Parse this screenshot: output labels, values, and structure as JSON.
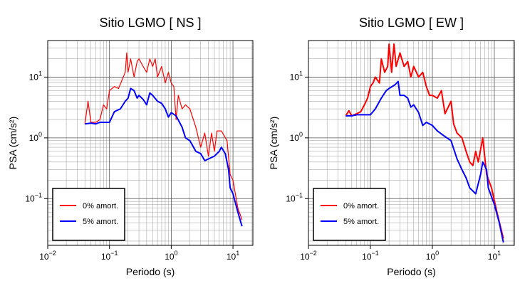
{
  "chart_data": [
    {
      "type": "line",
      "title": "Sitio LGMO [ NS ]",
      "xlabel": "Periodo (s)",
      "ylabel": "PSA (cm/s²)",
      "log_x": true,
      "log_y": true,
      "grid": true,
      "legend": "lower left",
      "xlim": [
        0.01,
        21
      ],
      "ylim": [
        0.017,
        40
      ],
      "xticks": [
        {
          "value": 0.01,
          "label": "10",
          "exponent": "−2"
        },
        {
          "value": 0.1,
          "label": "10",
          "exponent": "−1"
        },
        {
          "value": 1,
          "label": "10",
          "exponent": "0"
        },
        {
          "value": 10,
          "label": "10",
          "exponent": "1"
        }
      ],
      "yticks": [
        {
          "value": 0.1,
          "label": "10",
          "exponent": "−1"
        },
        {
          "value": 1,
          "label": "10",
          "exponent": "0"
        },
        {
          "value": 10,
          "label": "10",
          "exponent": "1"
        }
      ],
      "series": [
        {
          "name": "0% amort.",
          "color": "#ff0000",
          "width": 1.2,
          "x": [
            0.04,
            0.045,
            0.05,
            0.06,
            0.07,
            0.08,
            0.09,
            0.1,
            0.12,
            0.14,
            0.16,
            0.18,
            0.19,
            0.2,
            0.22,
            0.25,
            0.28,
            0.3,
            0.35,
            0.4,
            0.45,
            0.5,
            0.55,
            0.6,
            0.7,
            0.8,
            0.9,
            1.0,
            1.1,
            1.2,
            1.3,
            1.5,
            1.7,
            2.0,
            2.5,
            3.0,
            3.5,
            4.0,
            4.5,
            5.0,
            5.5,
            6.5,
            8,
            9,
            10,
            12,
            14
          ],
          "values": [
            1.7,
            4.0,
            1.8,
            1.8,
            2.0,
            3.5,
            3.0,
            6,
            7,
            6.5,
            9,
            12,
            25,
            12,
            20,
            10,
            18,
            20,
            15,
            12,
            20,
            15,
            20,
            10,
            15,
            8,
            12,
            8,
            7,
            2.0,
            5,
            3,
            3.5,
            3,
            1.5,
            0.7,
            1.2,
            0.5,
            1.2,
            0.6,
            1.3,
            1.3,
            0.9,
            0.25,
            0.2,
            0.07,
            0.045
          ]
        },
        {
          "name": "5% amort.",
          "color": "#0000ff",
          "width": 2,
          "x": [
            0.04,
            0.05,
            0.06,
            0.07,
            0.08,
            0.1,
            0.12,
            0.15,
            0.18,
            0.2,
            0.22,
            0.25,
            0.28,
            0.3,
            0.35,
            0.4,
            0.45,
            0.5,
            0.6,
            0.7,
            0.8,
            0.9,
            1.0,
            1.2,
            1.5,
            1.7,
            2.0,
            2.5,
            3.0,
            3.5,
            4,
            5,
            6,
            6.5,
            7.5,
            8.5,
            9,
            10,
            12,
            14
          ],
          "values": [
            1.7,
            1.75,
            1.7,
            1.8,
            1.8,
            1.8,
            2.7,
            3,
            4,
            4.5,
            6.5,
            6,
            4.5,
            5,
            4.3,
            3.5,
            5.5,
            5,
            4,
            3.7,
            3,
            2.2,
            2.6,
            2.3,
            1.5,
            1.0,
            0.9,
            0.6,
            0.55,
            0.42,
            0.45,
            0.5,
            0.6,
            0.7,
            0.55,
            0.3,
            0.15,
            0.12,
            0.06,
            0.035
          ]
        }
      ]
    },
    {
      "type": "line",
      "title": "Sitio LGMO [ EW ]",
      "xlabel": "Periodo (s)",
      "ylabel": "PSA (cm/s²)",
      "log_x": true,
      "log_y": true,
      "grid": true,
      "legend": "lower left",
      "xlim": [
        0.01,
        21
      ],
      "ylim": [
        0.017,
        40
      ],
      "xticks": [
        {
          "value": 0.01,
          "label": "10",
          "exponent": "−2"
        },
        {
          "value": 0.1,
          "label": "10",
          "exponent": "−1"
        },
        {
          "value": 1,
          "label": "10",
          "exponent": "0"
        },
        {
          "value": 10,
          "label": "10",
          "exponent": "1"
        }
      ],
      "yticks": [
        {
          "value": 0.1,
          "label": "10",
          "exponent": "−1"
        },
        {
          "value": 1,
          "label": "10",
          "exponent": "0"
        },
        {
          "value": 10,
          "label": "10",
          "exponent": "1"
        }
      ],
      "series": [
        {
          "name": "0% amort.",
          "color": "#ff0000",
          "width": 2,
          "x": [
            0.04,
            0.045,
            0.05,
            0.06,
            0.07,
            0.08,
            0.09,
            0.1,
            0.11,
            0.12,
            0.14,
            0.15,
            0.17,
            0.19,
            0.2,
            0.22,
            0.24,
            0.26,
            0.3,
            0.35,
            0.4,
            0.45,
            0.5,
            0.6,
            0.7,
            0.8,
            0.9,
            1.0,
            1.2,
            1.4,
            1.6,
            2.0,
            2.2,
            2.5,
            3,
            3.5,
            4,
            4.5,
            5,
            5.5,
            6.5,
            7.5,
            9,
            11,
            14
          ],
          "values": [
            2.3,
            2.8,
            2.3,
            2.5,
            2.7,
            3.5,
            4.5,
            7,
            8,
            10,
            8,
            20,
            12,
            15,
            35,
            12,
            35,
            15,
            25,
            15,
            18,
            10,
            15,
            10,
            12,
            7,
            5,
            5,
            4.5,
            6,
            2.5,
            4,
            1.7,
            1.2,
            1.0,
            0.6,
            0.4,
            0.35,
            0.6,
            0.4,
            1.0,
            0.25,
            0.15,
            0.06,
            0.022
          ]
        },
        {
          "name": "5% amort.",
          "color": "#0000ff",
          "width": 2,
          "x": [
            0.04,
            0.05,
            0.06,
            0.08,
            0.1,
            0.12,
            0.15,
            0.18,
            0.2,
            0.25,
            0.28,
            0.3,
            0.35,
            0.4,
            0.45,
            0.5,
            0.6,
            0.7,
            0.8,
            1.0,
            1.2,
            1.5,
            2.0,
            2.5,
            3,
            3.5,
            4,
            5,
            6,
            6.5,
            7.5,
            8,
            10,
            12,
            14
          ],
          "values": [
            2.3,
            2.3,
            2.4,
            2.4,
            2.4,
            3.0,
            4.5,
            6,
            6.5,
            7.5,
            8.5,
            5,
            5,
            4.5,
            3.2,
            3.5,
            2.6,
            1.6,
            1.8,
            1.6,
            1.3,
            1.1,
            0.9,
            0.45,
            0.3,
            0.22,
            0.15,
            0.12,
            0.25,
            0.4,
            0.3,
            0.15,
            0.08,
            0.04,
            0.019
          ]
        }
      ]
    }
  ]
}
